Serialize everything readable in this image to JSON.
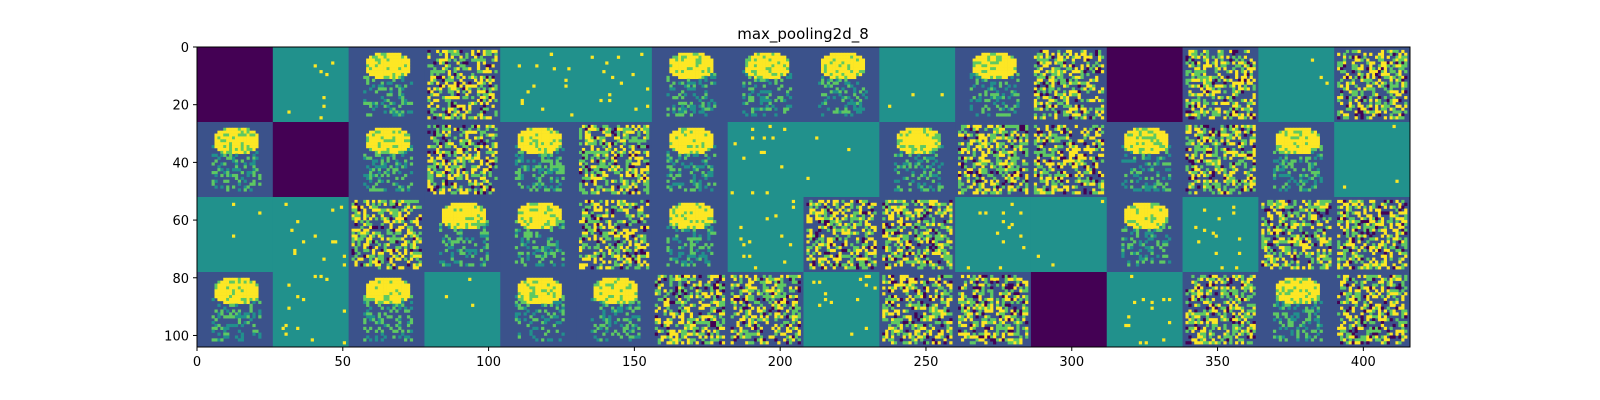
{
  "chart_data": {
    "type": "heatmap",
    "title": "max_pooling2d_8",
    "xlabel": "",
    "ylabel": "",
    "xlim": [
      0,
      416
    ],
    "ylim": [
      104,
      0
    ],
    "xticks": [
      0,
      50,
      100,
      150,
      200,
      250,
      300,
      350,
      400
    ],
    "yticks": [
      0,
      20,
      40,
      60,
      80,
      100
    ],
    "grid": false,
    "colormap": "viridis",
    "tile_grid": {
      "rows": 4,
      "cols": 16,
      "tile_size": 26
    },
    "tiles": [
      [
        "dark",
        "speckle",
        "figure",
        "busy",
        "sparse",
        "sparse",
        "figure",
        "figure",
        "figure",
        "flat",
        "figure",
        "busy",
        "dark",
        "busy",
        "flat",
        "busy"
      ],
      [
        "figure",
        "dark",
        "figure",
        "busy",
        "figure",
        "busy",
        "figure",
        "sparse",
        "flat",
        "figure",
        "busy",
        "busy",
        "figure",
        "busy",
        "figure",
        "flat"
      ],
      [
        "flat",
        "sparse",
        "busy",
        "figure",
        "figure",
        "busy",
        "figure",
        "sparse",
        "busy",
        "busy",
        "sparse",
        "flat",
        "figure",
        "sparse",
        "busy",
        "busy"
      ],
      [
        "figure",
        "sparse",
        "figure",
        "flat",
        "figure",
        "figure",
        "busy",
        "busy",
        "sparse",
        "busy",
        "busy",
        "dark",
        "sparse",
        "busy",
        "figure",
        "busy"
      ]
    ]
  },
  "colors": {
    "dark": "#440154",
    "base": "#21918c",
    "mid": "#3b528b",
    "bright": "#fde725",
    "green": "#5ec962"
  }
}
